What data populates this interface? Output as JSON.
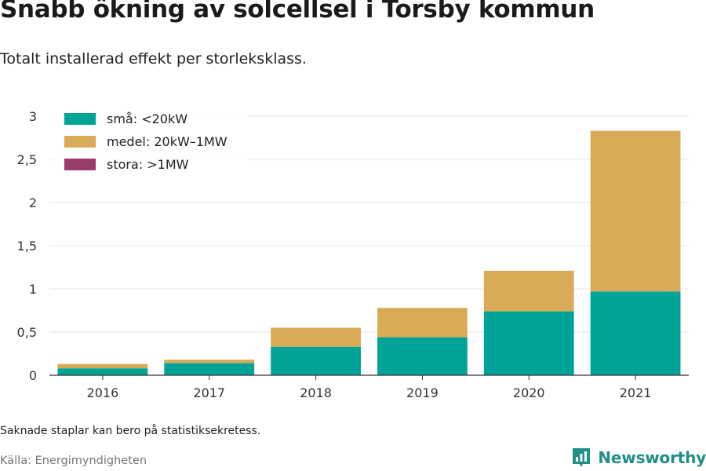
{
  "title": "Snabb ökning av solcellsel i Torsby kommun",
  "subtitle": "Totalt installerad effekt per storleksklass.",
  "note": "Saknade staplar kan bero på statistiksekretess.",
  "source": "Källa: Energimyndigheten",
  "brand": {
    "name": "Newsworthy",
    "icon": "newsworthy-logo-icon"
  },
  "colors": {
    "small": "#00a398",
    "medium": "#d9ab57",
    "large": "#9b3d6b",
    "grid": "#e5e5e5",
    "axis": "#333333"
  },
  "chart_data": {
    "type": "bar",
    "stacked": true,
    "categories": [
      "2016",
      "2017",
      "2018",
      "2019",
      "2020",
      "2021"
    ],
    "series": [
      {
        "name": "små: <20kW",
        "values": [
          0.08,
          0.14,
          0.33,
          0.44,
          0.74,
          0.97
        ]
      },
      {
        "name": "medel: 20kW–1MW",
        "values": [
          0.05,
          0.04,
          0.22,
          0.34,
          0.47,
          1.86
        ]
      },
      {
        "name": "stora: >1MW",
        "values": [
          0,
          0,
          0,
          0,
          0,
          0
        ]
      }
    ],
    "ylim": [
      0,
      3
    ],
    "yticks": [
      0,
      0.5,
      1,
      1.5,
      2,
      2.5,
      3
    ],
    "ytick_labels": [
      "0",
      "0,5",
      "1",
      "1,5",
      "2",
      "2,5",
      "3"
    ],
    "xlabel": "",
    "ylabel": "",
    "grid": true,
    "legend_position": "top-left"
  }
}
